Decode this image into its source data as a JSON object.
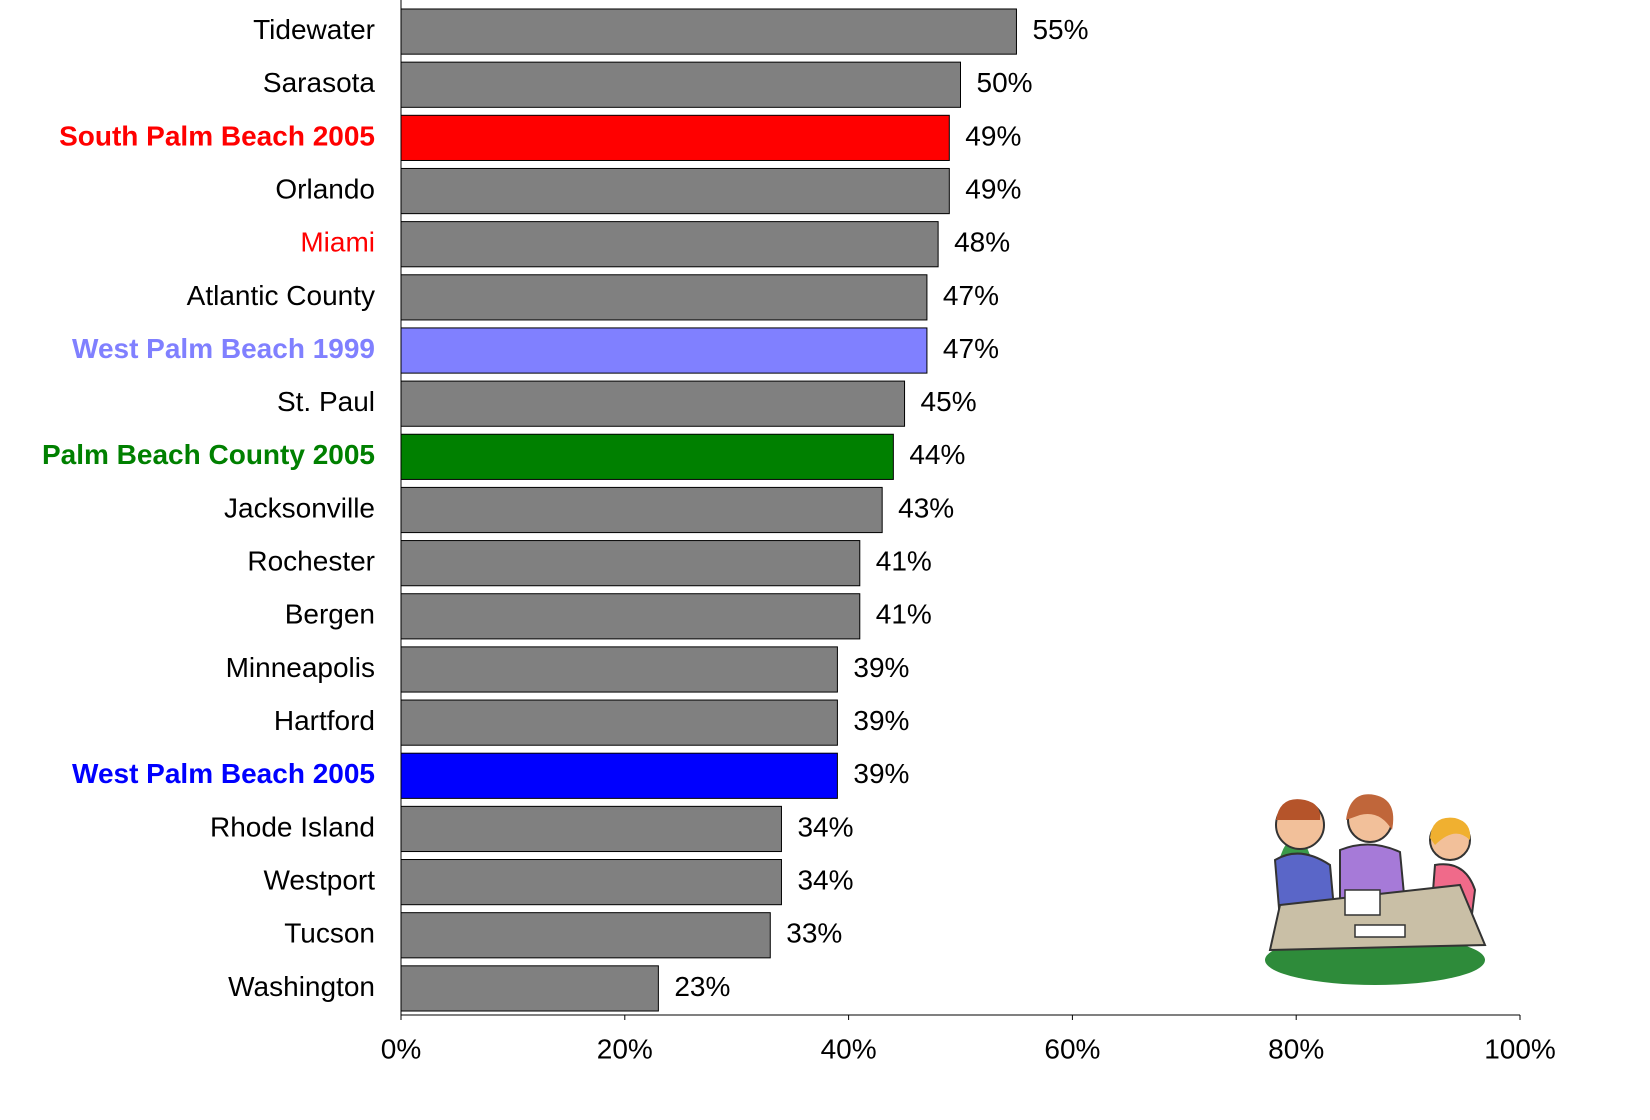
{
  "chart_data": {
    "type": "barh",
    "categories": [
      "Tidewater",
      "Sarasota",
      "South Palm Beach 2005",
      "Orlando",
      "Miami",
      "Atlantic County",
      "West Palm Beach 1999",
      "St. Paul",
      "Palm Beach County 2005",
      "Jacksonville",
      "Rochester",
      "Bergen",
      "Minneapolis",
      "Hartford",
      "West Palm Beach 2005",
      "Rhode Island",
      "Westport",
      "Tucson",
      "Washington"
    ],
    "values": [
      55,
      50,
      49,
      49,
      48,
      47,
      47,
      45,
      44,
      43,
      41,
      41,
      39,
      39,
      39,
      34,
      34,
      33,
      23
    ],
    "value_labels": [
      "55%",
      "50%",
      "49%",
      "49%",
      "48%",
      "47%",
      "47%",
      "45%",
      "44%",
      "43%",
      "41%",
      "41%",
      "39%",
      "39%",
      "39%",
      "34%",
      "34%",
      "33%",
      "23%"
    ],
    "colors": [
      "#808080",
      "#808080",
      "#ff0000",
      "#808080",
      "#808080",
      "#808080",
      "#8080ff",
      "#808080",
      "#008000",
      "#808080",
      "#808080",
      "#808080",
      "#808080",
      "#808080",
      "#0000ff",
      "#808080",
      "#808080",
      "#808080",
      "#808080"
    ],
    "label_colors": [
      "#000000",
      "#000000",
      "#ff0000",
      "#000000",
      "#ff0000",
      "#000000",
      "#8080ff",
      "#000000",
      "#008000",
      "#000000",
      "#000000",
      "#000000",
      "#000000",
      "#000000",
      "#0000ff",
      "#000000",
      "#000000",
      "#000000",
      "#000000"
    ],
    "label_bold": [
      false,
      false,
      true,
      false,
      false,
      false,
      true,
      false,
      true,
      false,
      false,
      false,
      false,
      false,
      true,
      false,
      false,
      false,
      false
    ],
    "xlim": [
      0,
      100
    ],
    "xticks": [
      {
        "value": 0,
        "label": "0%"
      },
      {
        "value": 20,
        "label": "20%"
      },
      {
        "value": 40,
        "label": "40%"
      },
      {
        "value": 60,
        "label": "60%"
      },
      {
        "value": 80,
        "label": "80%"
      },
      {
        "value": 100,
        "label": "100%"
      }
    ]
  }
}
